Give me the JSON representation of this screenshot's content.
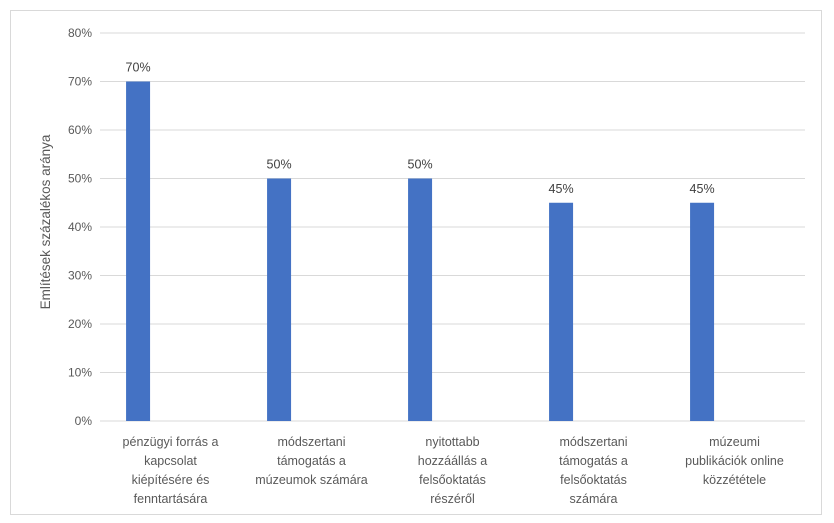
{
  "chart_data": {
    "type": "bar",
    "title": "",
    "xlabel": "",
    "ylabel": "Említések százalékos aránya",
    "ylim": [
      0,
      80
    ],
    "y_ticks": [
      "0%",
      "10%",
      "20%",
      "30%",
      "40%",
      "50%",
      "60%",
      "70%",
      "80%"
    ],
    "grid": true,
    "legend": "none",
    "bar_color": "#4472c4",
    "categories": [
      [
        "pénzügyi forrás a",
        "kapcsolat",
        "kiépítésére és",
        "fenntartására"
      ],
      [
        "módszertani",
        "támogatás a",
        "múzeumok számára"
      ],
      [
        "nyitottabb",
        "hozzáállás a",
        "felsőoktatás",
        "részéről"
      ],
      [
        "módszertani",
        "támogatás a",
        "felsőoktatás",
        "számára"
      ],
      [
        "múzeumi",
        "publikációk online",
        "közzététele"
      ]
    ],
    "values": [
      70,
      50,
      50,
      45,
      45
    ],
    "data_labels": [
      "70%",
      "50%",
      "50%",
      "45%",
      "45%"
    ]
  }
}
